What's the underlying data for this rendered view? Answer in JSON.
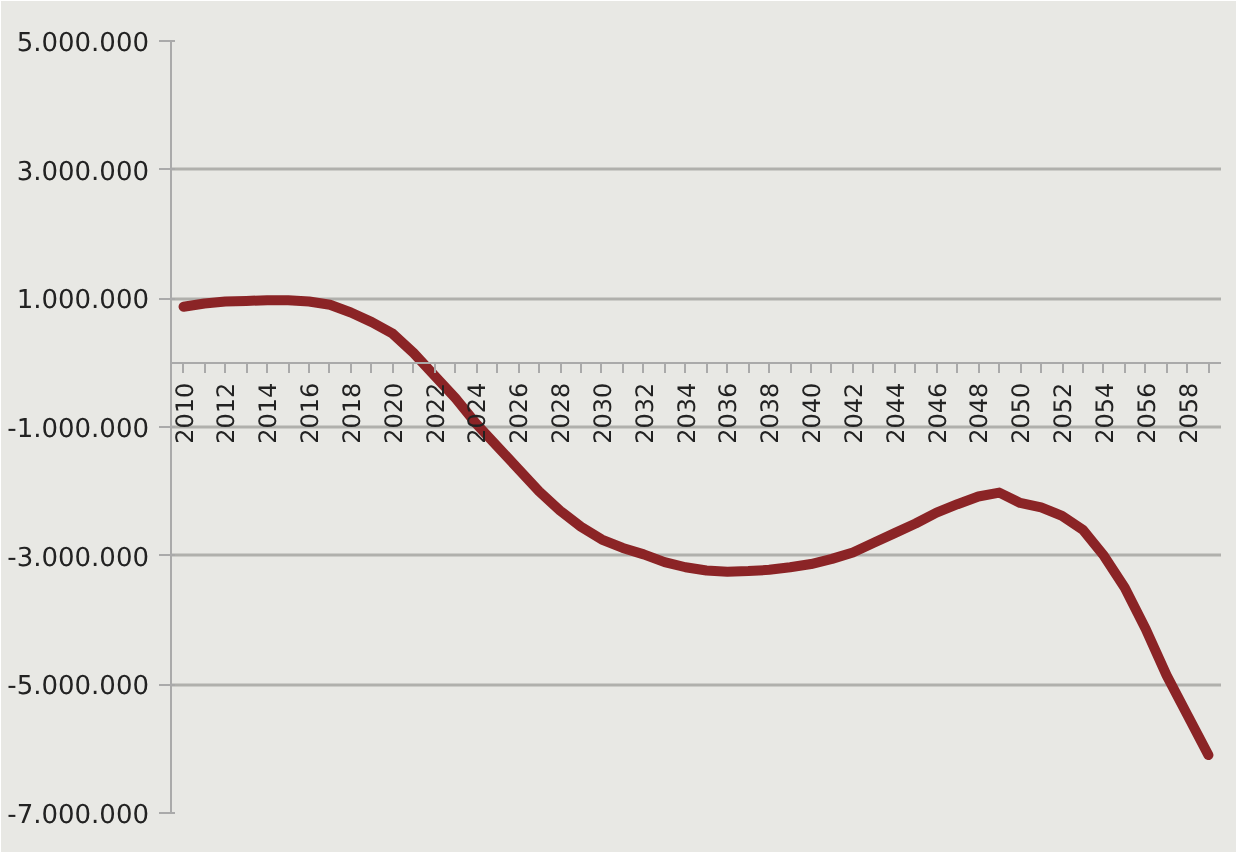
{
  "chart_data": {
    "type": "line",
    "categories": [
      "2010",
      null,
      "2012",
      null,
      "2014",
      null,
      "2016",
      null,
      "2018",
      null,
      "2020",
      null,
      "2022",
      null,
      "2024",
      null,
      "2026",
      null,
      "2028",
      null,
      "2030",
      null,
      "2032",
      null,
      "2034",
      null,
      "2036",
      null,
      "2038",
      null,
      "2040",
      null,
      "2042",
      null,
      "2044",
      null,
      "2046",
      null,
      "2048",
      null,
      "2050",
      null,
      "2052",
      null,
      "2054",
      null,
      "2056",
      null,
      "2058",
      null
    ],
    "series": [
      {
        "color": "#8b2426",
        "values": [
          870000,
          920000,
          950000,
          960000,
          970000,
          970000,
          950000,
          900000,
          780000,
          630000,
          450000,
          150000,
          -200000,
          -550000,
          -950000,
          -1300000,
          -1650000,
          -2000000,
          -2300000,
          -2550000,
          -2750000,
          -2880000,
          -2980000,
          -3100000,
          -3180000,
          -3230000,
          -3250000,
          -3240000,
          -3220000,
          -3180000,
          -3130000,
          -3050000,
          -2950000,
          -2800000,
          -2650000,
          -2500000,
          -2330000,
          -2200000,
          -2080000,
          -2020000,
          -2180000,
          -2250000,
          -2380000,
          -2600000,
          -3000000,
          -3500000,
          -4140000,
          -4860000,
          -5480000,
          -6100000
        ]
      }
    ],
    "ylim": [
      -7000000,
      5000000
    ],
    "yticks": [
      {
        "value": 5000000,
        "label": "5.000.000"
      },
      {
        "value": 3000000,
        "label": "3.000.000"
      },
      {
        "value": 1000000,
        "label": "1.000.000"
      },
      {
        "value": -1000000,
        "label": "-1.000.000"
      },
      {
        "value": -3000000,
        "label": "-3.000.000"
      },
      {
        "value": -5000000,
        "label": "-5.000.000"
      },
      {
        "value": -7000000,
        "label": "-7.000.000"
      }
    ],
    "grid": "y",
    "marker": "none",
    "line_style": "solid"
  }
}
